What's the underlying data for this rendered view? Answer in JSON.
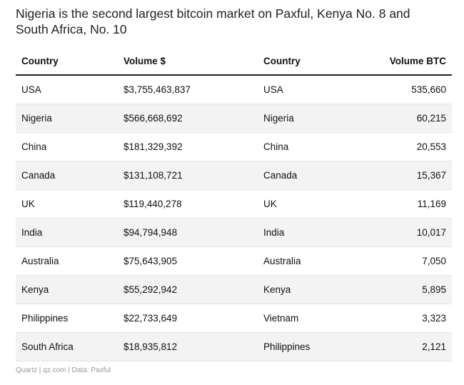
{
  "chart_data": {
    "type": "table",
    "title": "Nigeria is the second largest bitcoin market on Paxful, Kenya No. 8 and South Africa, No. 10",
    "columns": [
      "Country",
      "Volume $",
      "Country",
      "Volume BTC"
    ],
    "rows": [
      [
        "USA",
        "$3,755,463,837",
        "USA",
        "535,660"
      ],
      [
        "Nigeria",
        "$566,668,692",
        "Nigeria",
        "60,215"
      ],
      [
        "China",
        "$181,329,392",
        "China",
        "20,553"
      ],
      [
        "Canada",
        "$131,108,721",
        "Canada",
        "15,367"
      ],
      [
        "UK",
        "$119,440,278",
        "UK",
        "11,169"
      ],
      [
        "India",
        "$94,794,948",
        "India",
        "10,017"
      ],
      [
        "Australia",
        "$75,643,905",
        "Australia",
        "7,050"
      ],
      [
        "Kenya",
        "$55,292,942",
        "Kenya",
        "5,895"
      ],
      [
        "Philippines",
        "$22,733,649",
        "Vietnam",
        "3,323"
      ],
      [
        "South Africa",
        "$18,935,812",
        "Philippines",
        "2,121"
      ]
    ],
    "footer": "Quartz | qz.com | Data: Paxful"
  },
  "colors": {
    "header_rule": "#222222",
    "row_divider": "#e3e3e3",
    "alt_row_bg": "#f3f3f3",
    "footer_text": "#9a9a9a"
  }
}
